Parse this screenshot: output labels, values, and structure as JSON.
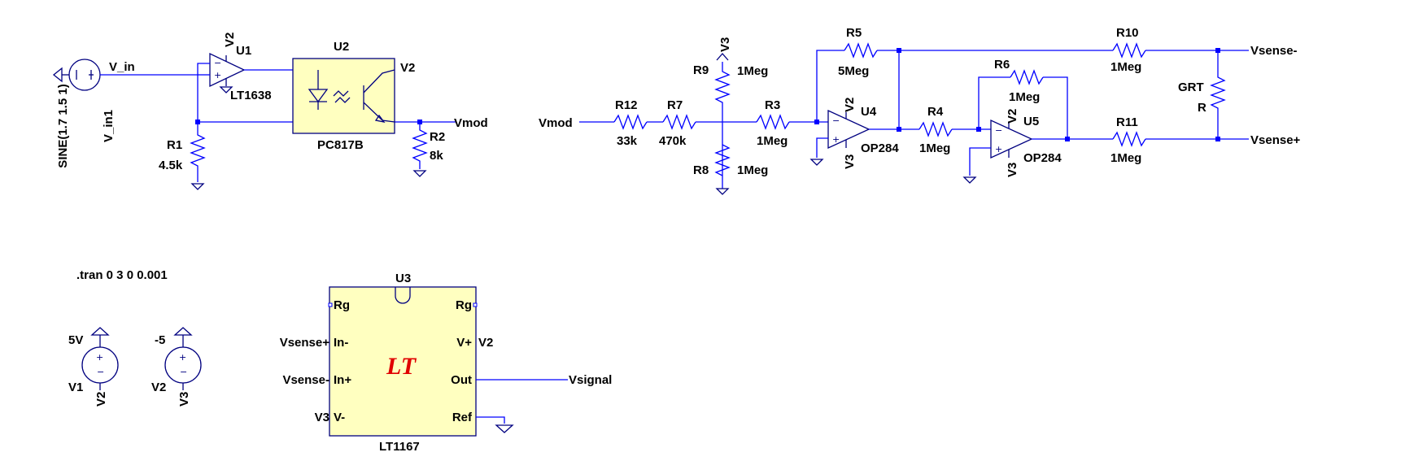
{
  "sources": {
    "vin_value": "SINE(1.7 1.5 1)",
    "vin_name": "V_in1",
    "v1_value": "5V",
    "v1_name": "V1",
    "v2_value": "-5",
    "v2_name": "V2"
  },
  "nets": {
    "v_in": "V_in",
    "v2": "V2",
    "v3": "V3",
    "vmod": "Vmod",
    "vsense_minus": "Vsense-",
    "vsense_plus": "Vsense+",
    "vsignal": "Vsignal"
  },
  "components": {
    "u1": {
      "name": "U1",
      "model": "LT1638"
    },
    "u2": {
      "name": "U2",
      "model": "PC817B"
    },
    "u3": {
      "name": "U3",
      "model": "LT1167",
      "logo": "LT"
    },
    "u4": {
      "name": "U4",
      "model": "OP284"
    },
    "u5": {
      "name": "U5",
      "model": "OP284"
    },
    "r1": {
      "name": "R1",
      "value": "4.5k"
    },
    "r2": {
      "name": "R2",
      "value": "8k"
    },
    "r3": {
      "name": "R3",
      "value": "1Meg"
    },
    "r4": {
      "name": "R4",
      "value": "1Meg"
    },
    "r5": {
      "name": "R5",
      "value": "5Meg"
    },
    "r6": {
      "name": "R6",
      "value": "1Meg"
    },
    "r7": {
      "name": "R7",
      "value": "470k"
    },
    "r8": {
      "name": "R8",
      "value": "1Meg"
    },
    "r9": {
      "name": "R9",
      "value": "1Meg"
    },
    "r10": {
      "name": "R10",
      "value": "1Meg"
    },
    "r11": {
      "name": "R11",
      "value": "1Meg"
    },
    "r12": {
      "name": "R12",
      "value": "33k"
    },
    "grt": {
      "name": "GRT",
      "value": "R"
    }
  },
  "u3_pins": {
    "rg": "Rg",
    "in_minus": "In-",
    "in_plus": "In+",
    "v_minus": "V-",
    "v_plus": "V+",
    "out": "Out",
    "ref": "Ref"
  },
  "directive": ".tran 0 3 0 0.001"
}
